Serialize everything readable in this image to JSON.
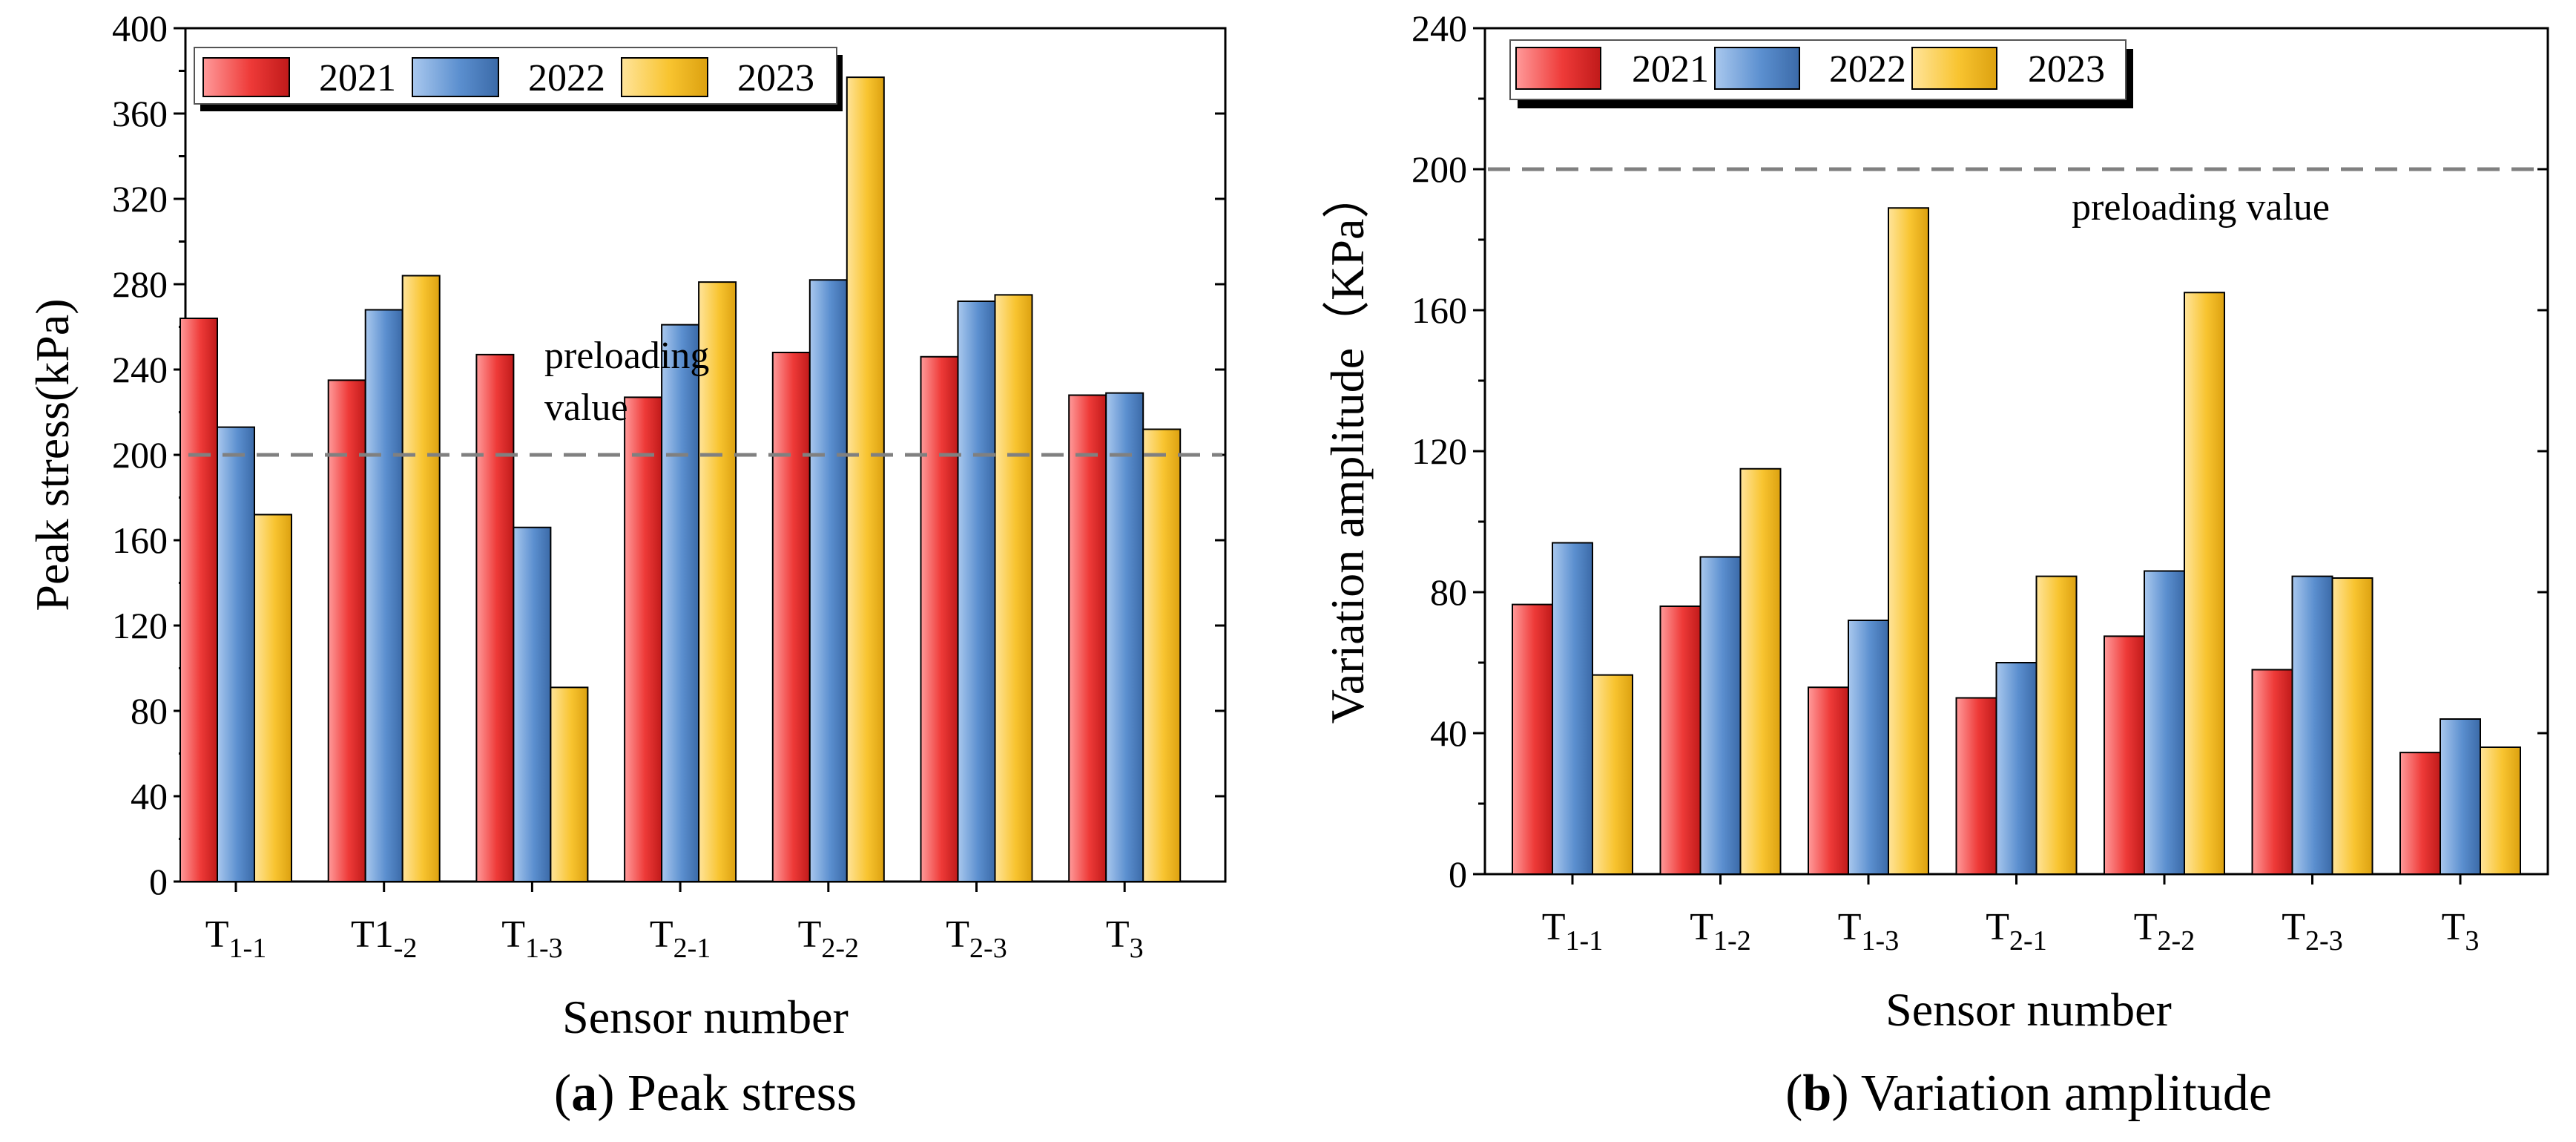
{
  "colors": {
    "2021": "#e8312f",
    "2022": "#5b8fcf",
    "2023": "#f5c02a",
    "preload_line": "#808080"
  },
  "series_names": [
    "2021",
    "2022",
    "2023"
  ],
  "chart_data": [
    {
      "type": "bar",
      "panel": "a",
      "caption": {
        "letter": "a",
        "text": "Peak stress"
      },
      "xlabel": "Sensor number",
      "ylabel": "Peak stress(kPa)",
      "ylim": [
        0,
        400
      ],
      "yticks": [
        0,
        40,
        80,
        120,
        160,
        200,
        240,
        280,
        320,
        360,
        400
      ],
      "categories": [
        {
          "base": "T",
          "sub": "1-1"
        },
        {
          "base": "T1",
          "sub": "-2"
        },
        {
          "base": "T",
          "sub": "1-3"
        },
        {
          "base": "T",
          "sub": "2-1"
        },
        {
          "base": "T",
          "sub": "2-2"
        },
        {
          "base": "T",
          "sub": "2-3"
        },
        {
          "base": "T",
          "sub": "3"
        }
      ],
      "series": [
        {
          "name": "2021",
          "values": [
            264,
            235,
            247,
            227,
            248,
            246,
            228
          ]
        },
        {
          "name": "2022",
          "values": [
            213,
            268,
            166,
            261,
            282,
            272,
            229
          ]
        },
        {
          "name": "2023",
          "values": [
            172,
            284,
            91,
            281,
            377,
            275,
            212
          ]
        }
      ],
      "reference_line": {
        "y": 200,
        "label_lines": [
          "preloading",
          "value"
        ]
      },
      "legend_position": "top-left"
    },
    {
      "type": "bar",
      "panel": "b",
      "caption": {
        "letter": "b",
        "text": "Variation amplitude"
      },
      "xlabel": "Sensor number",
      "ylabel": "Variation amplitude（KPa）",
      "ylim": [
        0,
        240
      ],
      "yticks": [
        0,
        40,
        80,
        120,
        160,
        200,
        240
      ],
      "categories": [
        {
          "base": "T",
          "sub": "1-1"
        },
        {
          "base": "T",
          "sub": "1-2"
        },
        {
          "base": "T",
          "sub": "1-3"
        },
        {
          "base": "T",
          "sub": "2-1"
        },
        {
          "base": "T",
          "sub": "2-2"
        },
        {
          "base": "T",
          "sub": "2-3"
        },
        {
          "base": "T",
          "sub": "3"
        }
      ],
      "series": [
        {
          "name": "2021",
          "values": [
            76.5,
            76,
            53,
            50,
            67.5,
            58,
            34.5
          ]
        },
        {
          "name": "2022",
          "values": [
            94,
            90,
            72,
            60,
            86,
            84.5,
            44
          ]
        },
        {
          "name": "2023",
          "values": [
            56.5,
            115,
            189,
            84.5,
            165,
            84,
            36
          ]
        }
      ],
      "reference_line": {
        "y": 200,
        "label_lines": [
          "preloading value"
        ]
      },
      "legend_position": "top-left"
    }
  ]
}
